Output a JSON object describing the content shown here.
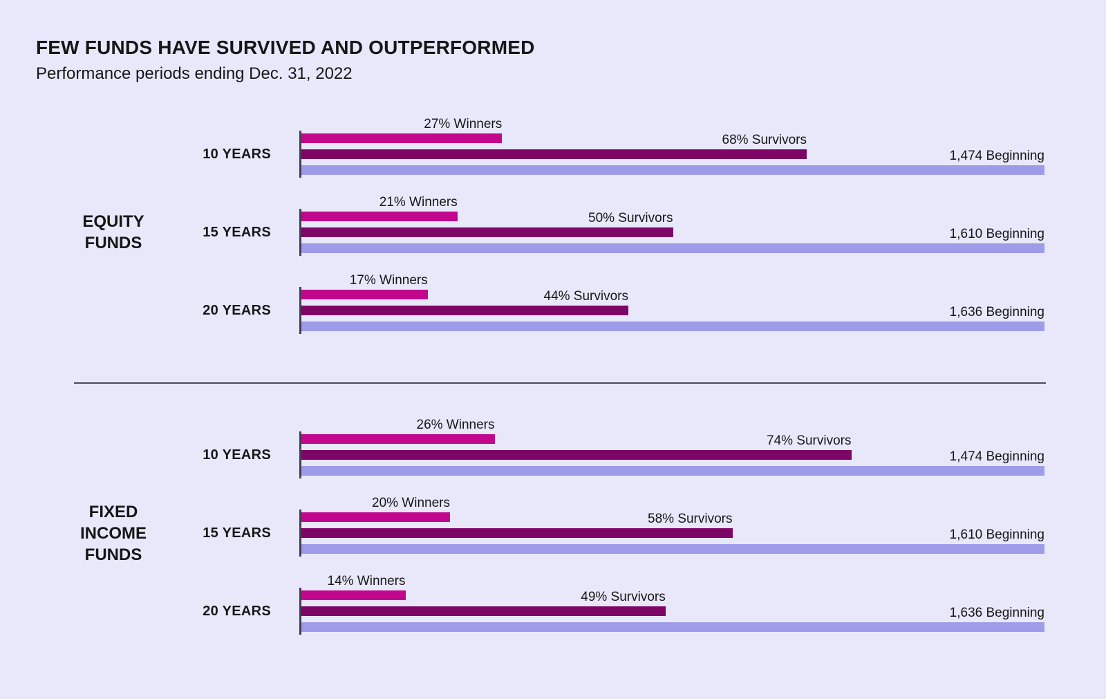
{
  "title": "FEW FUNDS HAVE SURVIVED AND OUTPERFORMED",
  "subtitle": "Performance periods ending Dec. 31, 2022",
  "colors": {
    "background": "#E9E8FB",
    "winners": "#C1088C",
    "survivors": "#7D0566",
    "beginning": "#9E9CE9",
    "axis": "#3F3F52",
    "divider": "#4B4B5E",
    "text": "#161616"
  },
  "chart_data": {
    "type": "bar",
    "orientation": "horizontal",
    "xlim": [
      0,
      100
    ],
    "unit": "percent of beginning fund count (beginning bar = 100%)",
    "series_legend": [
      "Winners",
      "Survivors",
      "Beginning"
    ],
    "groups": [
      {
        "label": "EQUITY FUNDS",
        "label_lines": [
          "EQUITY",
          "FUNDS"
        ],
        "rows": [
          {
            "period": "10 YEARS",
            "winners_pct": 27,
            "survivors_pct": 68,
            "beginning_count": "1,474",
            "winners_label": "27% Winners",
            "survivors_label": "68% Survivors",
            "beginning_label": "1,474 Beginning"
          },
          {
            "period": "15 YEARS",
            "winners_pct": 21,
            "survivors_pct": 50,
            "beginning_count": "1,610",
            "winners_label": "21% Winners",
            "survivors_label": "50% Survivors",
            "beginning_label": "1,610 Beginning"
          },
          {
            "period": "20 YEARS",
            "winners_pct": 17,
            "survivors_pct": 44,
            "beginning_count": "1,636",
            "winners_label": "17% Winners",
            "survivors_label": "44% Survivors",
            "beginning_label": "1,636 Beginning"
          }
        ]
      },
      {
        "label": "FIXED INCOME FUNDS",
        "label_lines": [
          "FIXED",
          "INCOME",
          "FUNDS"
        ],
        "rows": [
          {
            "period": "10 YEARS",
            "winners_pct": 26,
            "survivors_pct": 74,
            "beginning_count": "1,474",
            "winners_label": "26% Winners",
            "survivors_label": "74% Survivors",
            "beginning_label": "1,474 Beginning"
          },
          {
            "period": "15 YEARS",
            "winners_pct": 20,
            "survivors_pct": 58,
            "beginning_count": "1,610",
            "winners_label": "20% Winners",
            "survivors_label": "58% Survivors",
            "beginning_label": "1,610 Beginning"
          },
          {
            "period": "20 YEARS",
            "winners_pct": 14,
            "survivors_pct": 49,
            "beginning_count": "1,636",
            "winners_label": "14% Winners",
            "survivors_label": "49% Survivors",
            "beginning_label": "1,636 Beginning"
          }
        ]
      }
    ]
  }
}
